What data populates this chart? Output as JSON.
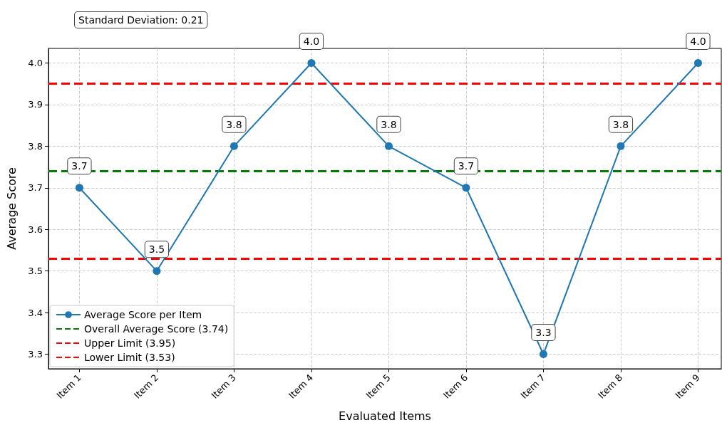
{
  "chart_data": {
    "type": "line",
    "xlabel": "Evaluated Items",
    "ylabel": "Average Score",
    "categories": [
      "Item 1",
      "Item 2",
      "Item 3",
      "Item 4",
      "Item 5",
      "Item 6",
      "Item 7",
      "Item 8",
      "Item 9"
    ],
    "series": [
      {
        "name": "Average Score per Item",
        "color": "#1f77b4",
        "values": [
          3.7,
          3.5,
          3.8,
          4.0,
          3.8,
          3.7,
          3.3,
          3.8,
          4.0
        ],
        "value_labels": [
          "3.7",
          "3.5",
          "3.8",
          "4.0",
          "3.8",
          "3.7",
          "3.3",
          "3.8",
          "4.0"
        ]
      }
    ],
    "ylim": [
      3.265,
      4.035
    ],
    "yticks": [
      3.3,
      3.4,
      3.5,
      3.6,
      3.7,
      3.8,
      3.9,
      {
        "value": 4.0,
        "label": "4.0"
      }
    ],
    "ref_lines": [
      {
        "axis": "y",
        "value": 3.74,
        "label": "Overall Average Score (3.74)",
        "color": "#008000",
        "line_style": "dashed"
      },
      {
        "axis": "y",
        "value": 3.95,
        "label": "Upper Limit (3.95)",
        "color": "#ff0000",
        "line_style": "dashed"
      },
      {
        "axis": "y",
        "value": 3.53,
        "label": "Lower Limit (3.53)",
        "color": "#ff0000",
        "line_style": "dashed"
      }
    ],
    "annotations": [
      "Standard Deviation: 0.21"
    ],
    "grid": true,
    "legend": "bottom left",
    "marker": "circle",
    "line_style": "solid"
  }
}
